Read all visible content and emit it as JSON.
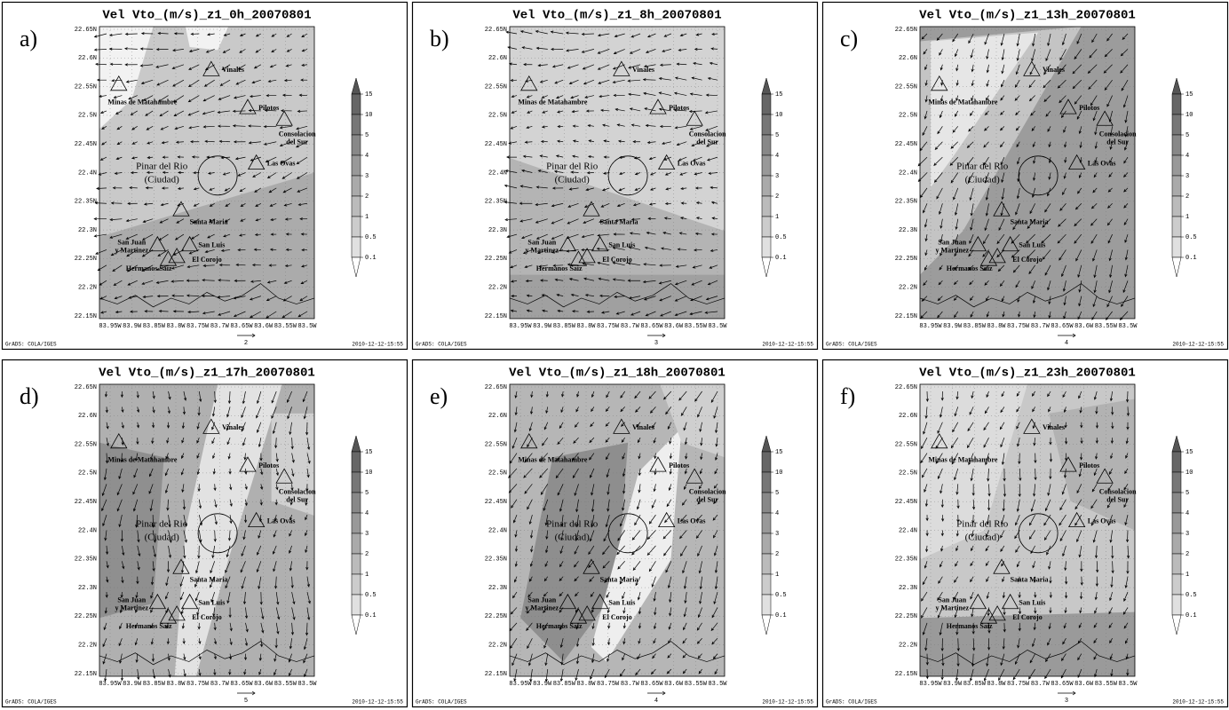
{
  "figure": {
    "panels": [
      {
        "label": "a)",
        "title": "Vel Vto_(m/s)_z1_0h_20070801",
        "ref_vector": "2"
      },
      {
        "label": "b)",
        "title": "Vel Vto_(m/s)_z1_8h_20070801",
        "ref_vector": "3"
      },
      {
        "label": "c)",
        "title": "Vel Vto_(m/s)_z1_13h_20070801",
        "ref_vector": "4"
      },
      {
        "label": "d)",
        "title": "Vel Vto_(m/s)_z1_17h_20070801",
        "ref_vector": "5"
      },
      {
        "label": "e)",
        "title": "Vel Vto_(m/s)_z1_18h_20070801",
        "ref_vector": "4"
      },
      {
        "label": "f)",
        "title": "Vel Vto_(m/s)_z1_23h_20070801",
        "ref_vector": "3"
      }
    ],
    "lat_labels": [
      "22.65N",
      "22.6N",
      "22.55N",
      "22.5N",
      "22.45N",
      "22.4N",
      "22.35N",
      "22.3N",
      "22.25N",
      "22.2N",
      "22.15N"
    ],
    "lon_labels": [
      "83.95W",
      "83.9W",
      "83.85W",
      "83.8W",
      "83.75W",
      "83.7W",
      "83.65W",
      "83.6W",
      "83.55W",
      "83.5W"
    ],
    "colorbar_labels": [
      "15",
      "10",
      "5",
      "4",
      "3",
      "2",
      "1",
      "0.5",
      "0.1"
    ],
    "places": [
      [
        "Vinales"
      ],
      [
        "Minas de Matahambre"
      ],
      [
        "Pilotos"
      ],
      [
        "Consolacion",
        "del Sur"
      ],
      [
        "Pinar del Rio",
        "(Ciudad)"
      ],
      [
        "Las Ovas"
      ],
      [
        "Santa Maria"
      ],
      [
        "San Juan",
        "y Martinez"
      ],
      [
        "San Luis"
      ],
      [
        "El Corojo"
      ],
      [
        "Hermanos Saiz"
      ]
    ],
    "footer_left": "GrADS: COLA/IGES",
    "footer_right": "2010-12-12-15:55"
  }
}
